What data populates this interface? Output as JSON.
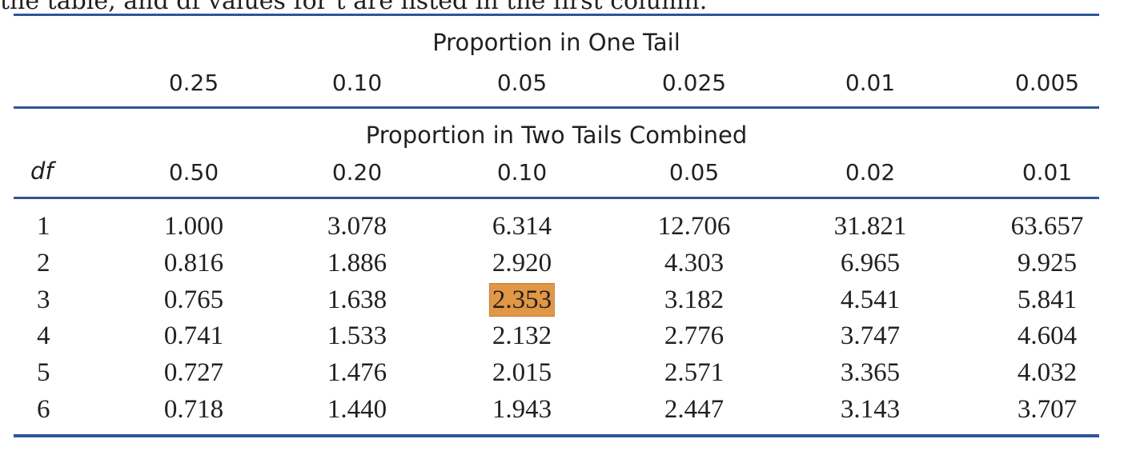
{
  "clipped_caption": "the table, and df values for t are listed in the first column.",
  "one_tail": {
    "heading": "Proportion in One Tail",
    "values": [
      "0.25",
      "0.10",
      "0.05",
      "0.025",
      "0.01",
      "0.005"
    ]
  },
  "two_tails": {
    "heading": "Proportion in Two Tails Combined",
    "df_label": "df",
    "values": [
      "0.50",
      "0.20",
      "0.10",
      "0.05",
      "0.02",
      "0.01"
    ]
  },
  "rows": [
    {
      "df": "1",
      "values": [
        "1.000",
        "3.078",
        "6.314",
        "12.706",
        "31.821",
        "63.657"
      ]
    },
    {
      "df": "2",
      "values": [
        "0.816",
        "1.886",
        "2.920",
        "4.303",
        "6.965",
        "9.925"
      ]
    },
    {
      "df": "3",
      "values": [
        "0.765",
        "1.638",
        "2.353",
        "3.182",
        "4.541",
        "5.841"
      ]
    },
    {
      "df": "4",
      "values": [
        "0.741",
        "1.533",
        "2.132",
        "2.776",
        "3.747",
        "4.604"
      ]
    },
    {
      "df": "5",
      "values": [
        "0.727",
        "1.476",
        "2.015",
        "2.571",
        "3.365",
        "4.032"
      ]
    },
    {
      "df": "6",
      "values": [
        "0.718",
        "1.440",
        "1.943",
        "2.447",
        "3.143",
        "3.707"
      ]
    }
  ],
  "highlight": {
    "row": 2,
    "col": 2,
    "color": "#e19745"
  },
  "colors": {
    "rule": "#2e5697",
    "text": "#231f20"
  }
}
